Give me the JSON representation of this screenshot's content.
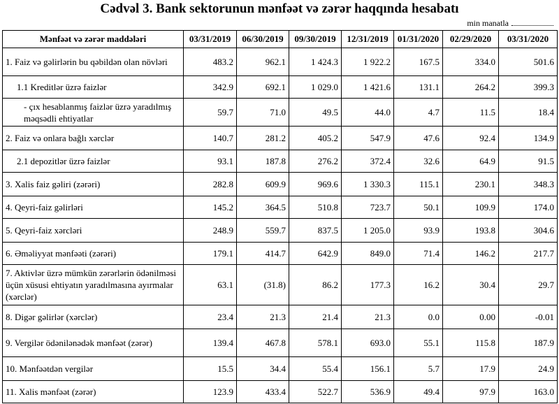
{
  "header": {
    "title": "Cədvəl 3. Bank sektorunun mənfəət və zərər haqqında hesabatı",
    "unit": "min manatla"
  },
  "table": {
    "columns": [
      "Mənfəət və zərər maddələri",
      "03/31/2019",
      "06/30/2019",
      "09/30/2019",
      "12/31/2019",
      "01/31/2020",
      "02/29/2020",
      "03/31/2020"
    ],
    "rows": [
      {
        "label": "1. Faiz və gəlirlərin bu qəbildən olan növləri",
        "values": [
          "483.2",
          "962.1",
          "1 424.3",
          "1 922.2",
          "167.5",
          "334.0",
          "501.6"
        ]
      },
      {
        "label": "1.1 Kreditlər üzrə faizlər",
        "values": [
          "342.9",
          "692.1",
          "1 029.0",
          "1 421.6",
          "131.1",
          "264.2",
          "399.3"
        ]
      },
      {
        "label": "- çıx hesablanmış faizlər üzrə yaradılmış məqsədli ehtiyatlar",
        "values": [
          "59.7",
          "71.0",
          "49.5",
          "44.0",
          "4.7",
          "11.5",
          "18.4"
        ]
      },
      {
        "label": "2. Faiz və onlara bağlı xərclər",
        "values": [
          "140.7",
          "281.2",
          "405.2",
          "547.9",
          "47.6",
          "92.4",
          "134.9"
        ]
      },
      {
        "label": "2.1 depozitlər üzrə faizlər",
        "values": [
          "93.1",
          "187.8",
          "276.2",
          "372.4",
          "32.6",
          "64.9",
          "91.5"
        ]
      },
      {
        "label": "3. Xalis faiz gəliri (zərəri)",
        "values": [
          "282.8",
          "609.9",
          "969.6",
          "1 330.3",
          "115.1",
          "230.1",
          "348.3"
        ]
      },
      {
        "label": "4. Qeyri-faiz gəlirləri",
        "values": [
          "145.2",
          "364.5",
          "510.8",
          "723.7",
          "50.1",
          "109.9",
          "174.0"
        ]
      },
      {
        "label": "5. Qeyri-faiz xərcləri",
        "values": [
          "248.9",
          "559.7",
          "837.5",
          "1 205.0",
          "93.9",
          "193.8",
          "304.6"
        ]
      },
      {
        "label": "6. Əməliyyat mənfəəti (zərəri)",
        "values": [
          "179.1",
          "414.7",
          "642.9",
          "849.0",
          "71.4",
          "146.2",
          "217.7"
        ]
      },
      {
        "label": "7. Aktivlər üzrə mümkün zərərlərin ödənilməsi üçün xüsusi ehtiyatın yaradılmasına ayırmalar (xərclər)",
        "values": [
          "63.1",
          "(31.8)",
          "86.2",
          "177.3",
          "16.2",
          "30.4",
          "29.7"
        ]
      },
      {
        "label": "8. Digər gəlirlər (xərclər)",
        "values": [
          "23.4",
          "21.3",
          "21.4",
          "21.3",
          "0.0",
          "0.00",
          "-0.01"
        ]
      },
      {
        "label": "9. Vergilər ödənilənədək mənfəət (zərər)",
        "values": [
          "139.4",
          "467.8",
          "578.1",
          "693.0",
          "55.1",
          "115.8",
          "187.9"
        ]
      },
      {
        "label": "10. Mənfəətdən vergilər",
        "values": [
          "15.5",
          "34.4",
          "55.4",
          "156.1",
          "5.7",
          "17.9",
          "24.9"
        ]
      },
      {
        "label": "11. Xalis mənfəət (zərər)",
        "values": [
          "123.9",
          "433.4",
          "522.7",
          "536.9",
          "49.4",
          "97.9",
          "163.0"
        ]
      }
    ]
  }
}
